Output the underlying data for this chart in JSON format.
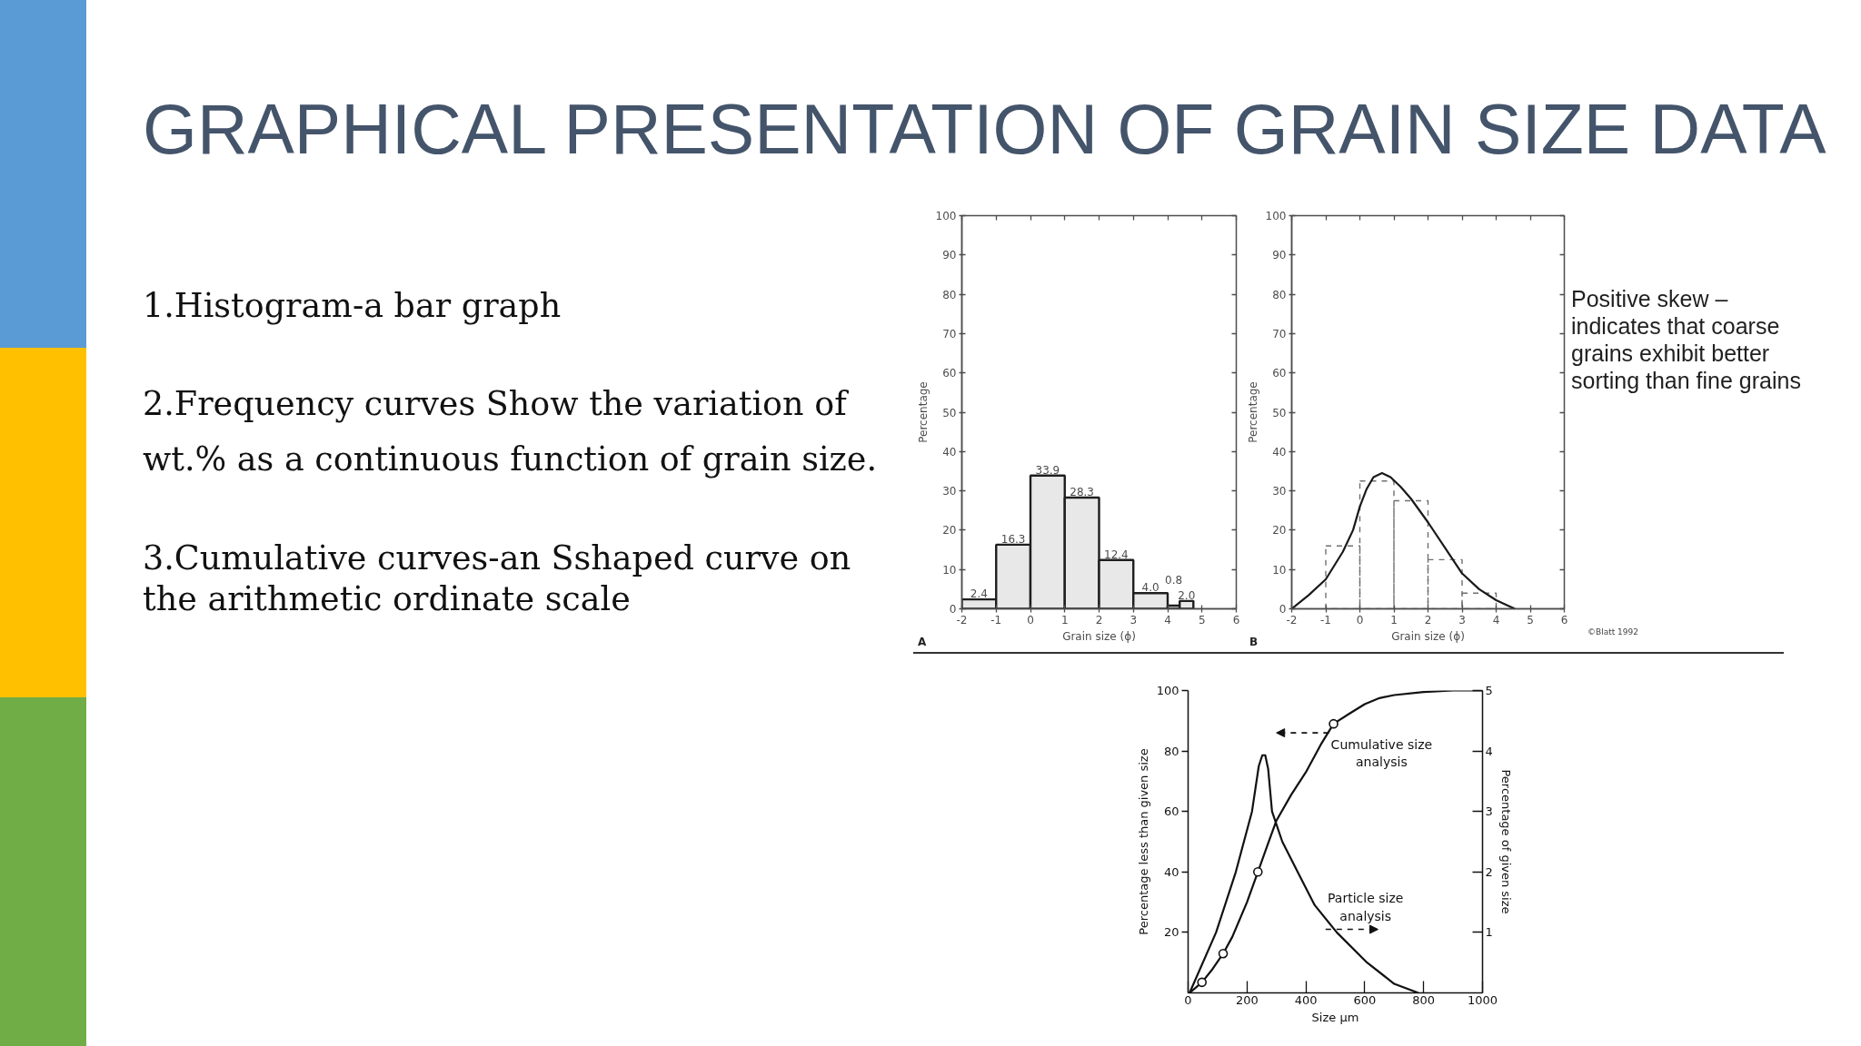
{
  "chart_data": [
    {
      "type": "other",
      "title": "GRAPHICAL PRESENTATION OF GRAIN SIZE DATA",
      "annotations": [
        "1.Histogram-a bar graph",
        "2.Frequency curves Show the variation of wt.% as a continuous function of grain size.",
        "3.Cumulative curves-an Sshaped curve on the arithmetic ordinate scale"
      ]
    },
    {
      "type": "histogram",
      "xlabel": "Grain size (ϕ)",
      "ylabel": "Percentage",
      "bins": [
        -2,
        -1,
        0,
        1,
        2,
        3,
        4,
        4.35,
        4.75
      ],
      "values": [
        2.4,
        16.3,
        33.9,
        28.3,
        12.4,
        4.0,
        0.8,
        2.0
      ],
      "value_labels": [
        "2.4",
        "16.3",
        "33.9",
        "28.3",
        "12.4",
        "4.0",
        "0.8",
        "2.0"
      ],
      "color": "#e8e8e8",
      "xlim": [
        -2,
        6
      ],
      "ylim": [
        0,
        100
      ],
      "xticks": [
        -2,
        -1,
        0,
        1,
        2,
        3,
        4,
        5,
        6
      ],
      "yticks": [
        0,
        10,
        20,
        30,
        40,
        50,
        60,
        70,
        80,
        90,
        100
      ],
      "annotations": [
        "A"
      ]
    },
    {
      "type": "line",
      "xlabel": "Grain size (ϕ)",
      "ylabel": "Percentage",
      "xlim": [
        -2,
        6
      ],
      "ylim": [
        0,
        100
      ],
      "xticks": [
        -2,
        -1,
        0,
        1,
        2,
        3,
        4,
        5,
        6
      ],
      "yticks": [
        0,
        10,
        20,
        30,
        40,
        50,
        60,
        70,
        80,
        90,
        100
      ],
      "series": [
        {
          "type": "histogram",
          "bins": [
            -1,
            0,
            1,
            2,
            3,
            4
          ],
          "values": [
            16,
            32.5,
            27.5,
            12.5,
            4
          ],
          "color": "#707070",
          "line_style": "dashed"
        },
        {
          "type": "line",
          "x": [
            -2,
            -1.5,
            -1,
            -0.5,
            -0.2,
            0,
            0.2,
            0.4,
            0.65,
            0.9,
            1.2,
            1.5,
            2,
            2.5,
            3,
            3.5,
            4,
            4.3,
            4.55
          ],
          "values": [
            0,
            3.5,
            7.5,
            14.5,
            20,
            26,
            30.5,
            33.5,
            34.5,
            33.5,
            31,
            28,
            22,
            15.5,
            9,
            5,
            2.2,
            1,
            0
          ],
          "color": "#1a1a1a"
        }
      ],
      "annotations": [
        "Positive skew – indicates that coarse grains exhibit better sorting than fine grains",
        "©Blatt 1992",
        "B"
      ]
    },
    {
      "type": "line",
      "xlabel": "Size μm",
      "ylabel": "Percentage less than given size",
      "y2label": "Percentage of given size",
      "xlim": [
        0,
        1000
      ],
      "ylim": [
        0,
        100
      ],
      "y2lim": [
        0,
        5
      ],
      "xticks": [
        0,
        200,
        400,
        600,
        800,
        1000
      ],
      "yticks": [
        20,
        40,
        60,
        80,
        100
      ],
      "y2ticks": [
        1,
        2,
        3,
        4,
        5
      ],
      "series": [
        {
          "type": "line",
          "x": [
            5,
            47,
            80,
            119,
            150,
            200,
            237,
            270,
            300,
            350,
            400,
            450,
            494,
            550,
            600,
            650,
            700,
            800,
            900,
            1000
          ],
          "values": [
            0,
            3.5,
            7.5,
            13,
            18.5,
            30,
            40,
            49,
            57,
            65.5,
            73,
            82,
            89,
            92.5,
            95.5,
            97.5,
            98.5,
            99.5,
            100,
            100
          ],
          "color": "#111111"
        },
        {
          "type": "line",
          "axis": "y2",
          "x": [
            5,
            95,
            162,
            217,
            240,
            252,
            262,
            272,
            285,
            320,
            372,
            430,
            505,
            608,
            700,
            782
          ],
          "values": [
            0,
            1.0,
            2.0,
            3.0,
            3.75,
            3.93,
            3.93,
            3.7,
            3.0,
            2.5,
            2.0,
            1.45,
            1.0,
            0.5,
            0.15,
            0
          ],
          "color": "#111111"
        },
        {
          "type": "scatter",
          "x": [
            47,
            119,
            237,
            494
          ],
          "values": [
            3.5,
            13,
            40,
            89
          ],
          "color": "#111111",
          "marker": "circle"
        }
      ],
      "annotations": [
        {
          "text": "Cumulative size analysis",
          "x": 470,
          "y": 86
        },
        {
          "text": "Particle size analysis",
          "x": 475,
          "y": 21
        }
      ]
    }
  ]
}
